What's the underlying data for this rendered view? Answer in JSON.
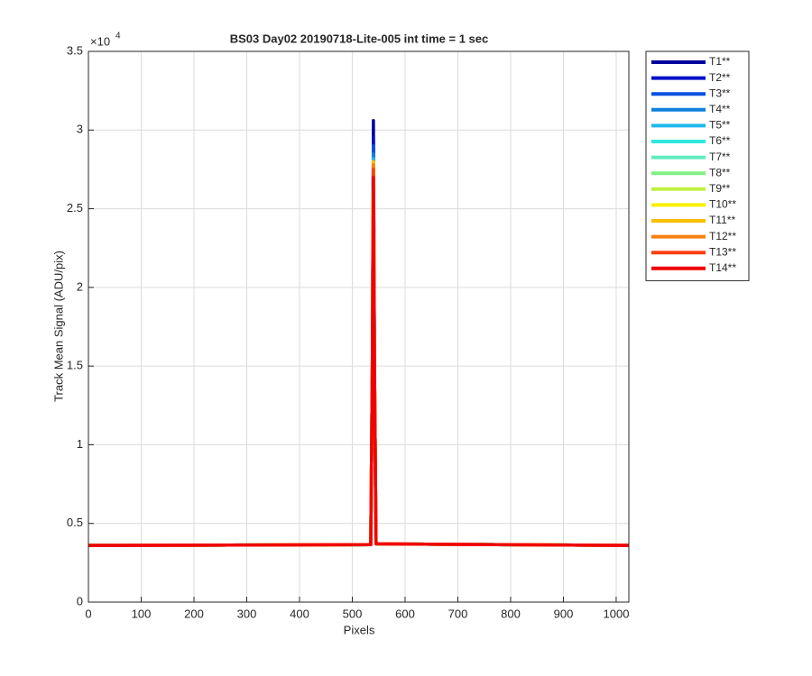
{
  "chart_data": {
    "type": "line",
    "title": "BS03 Day02 20190718-Lite-005 int time = 1 sec",
    "x_label": "Pixels",
    "y_label": "Track Mean Signal (ADU/pix)",
    "y_multiplier": {
      "base": "×10",
      "exponent": "4"
    },
    "x": [
      0,
      535,
      538,
      540,
      542,
      545,
      1024
    ],
    "series": [
      {
        "name": "T1**",
        "color": "#00009c",
        "values": [
          0.36,
          0.365,
          1.5,
          3.06,
          1.5,
          0.37,
          0.36
        ]
      },
      {
        "name": "T2**",
        "color": "#0010c8",
        "values": [
          0.36,
          0.365,
          1.5,
          2.95,
          1.5,
          0.37,
          0.36
        ]
      },
      {
        "name": "T3**",
        "color": "#0050e0",
        "values": [
          0.36,
          0.365,
          1.5,
          2.9,
          1.5,
          0.37,
          0.36
        ]
      },
      {
        "name": "T4**",
        "color": "#1080e0",
        "values": [
          0.36,
          0.365,
          1.5,
          2.85,
          1.5,
          0.37,
          0.36
        ]
      },
      {
        "name": "T5**",
        "color": "#20b8ec",
        "values": [
          0.36,
          0.365,
          1.5,
          2.82,
          1.5,
          0.37,
          0.36
        ]
      },
      {
        "name": "T6**",
        "color": "#30e8e0",
        "values": [
          0.36,
          0.365,
          1.5,
          2.8,
          1.5,
          0.37,
          0.36
        ]
      },
      {
        "name": "T7**",
        "color": "#60ecc0",
        "values": [
          0.36,
          0.365,
          1.5,
          2.8,
          1.5,
          0.37,
          0.36
        ]
      },
      {
        "name": "T8**",
        "color": "#80f080",
        "values": [
          0.36,
          0.365,
          1.5,
          2.8,
          1.5,
          0.37,
          0.36
        ]
      },
      {
        "name": "T9**",
        "color": "#c0f040",
        "values": [
          0.36,
          0.365,
          1.5,
          2.8,
          1.5,
          0.37,
          0.36
        ]
      },
      {
        "name": "T10**",
        "color": "#f8f000",
        "values": [
          0.36,
          0.365,
          1.5,
          2.8,
          1.5,
          0.37,
          0.36
        ]
      },
      {
        "name": "T11**",
        "color": "#f8c000",
        "values": [
          0.36,
          0.365,
          1.5,
          2.8,
          1.5,
          0.37,
          0.36
        ]
      },
      {
        "name": "T12**",
        "color": "#f88010",
        "values": [
          0.36,
          0.365,
          1.5,
          2.78,
          1.5,
          0.37,
          0.36
        ]
      },
      {
        "name": "T13**",
        "color": "#f84010",
        "values": [
          0.36,
          0.365,
          1.5,
          2.75,
          1.5,
          0.37,
          0.36
        ]
      },
      {
        "name": "T14**",
        "color": "#f00000",
        "values": [
          0.36,
          0.365,
          1.5,
          2.7,
          1.5,
          0.37,
          0.36
        ]
      }
    ],
    "xlim": [
      0,
      1024
    ],
    "xticks": [
      0,
      100,
      200,
      300,
      400,
      500,
      600,
      700,
      800,
      900,
      1000
    ],
    "ylim": [
      0,
      3.5
    ],
    "yticks": [
      0,
      0.5,
      1,
      1.5,
      2,
      2.5,
      3,
      3.5
    ],
    "grid": true,
    "legend": "outside-right"
  }
}
